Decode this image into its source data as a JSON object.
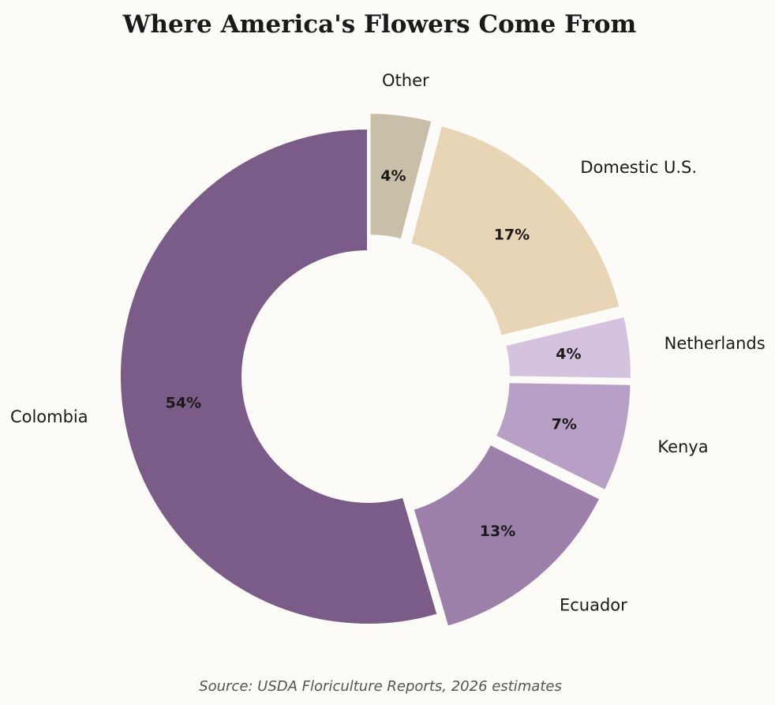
{
  "chart_data": {
    "type": "pie",
    "title": "Where America's Flowers Come From",
    "source": "Source: USDA Floriculture Reports, 2026 estimates",
    "categories": [
      "Other",
      "Domestic U.S.",
      "Netherlands",
      "Kenya",
      "Ecuador",
      "Colombia"
    ],
    "values": [
      4,
      17,
      4,
      7,
      13,
      54
    ],
    "value_labels": [
      "4%",
      "17%",
      "4%",
      "7%",
      "13%",
      "54%"
    ],
    "colors": [
      "#c9bea8",
      "#e8d5b5",
      "#d4c2de",
      "#b79fc5",
      "#9c80a9",
      "#7b5c88"
    ],
    "exploded": [
      true,
      true,
      true,
      true,
      true,
      false
    ],
    "donut": true,
    "start": "top, clockwise",
    "legend": "none"
  }
}
